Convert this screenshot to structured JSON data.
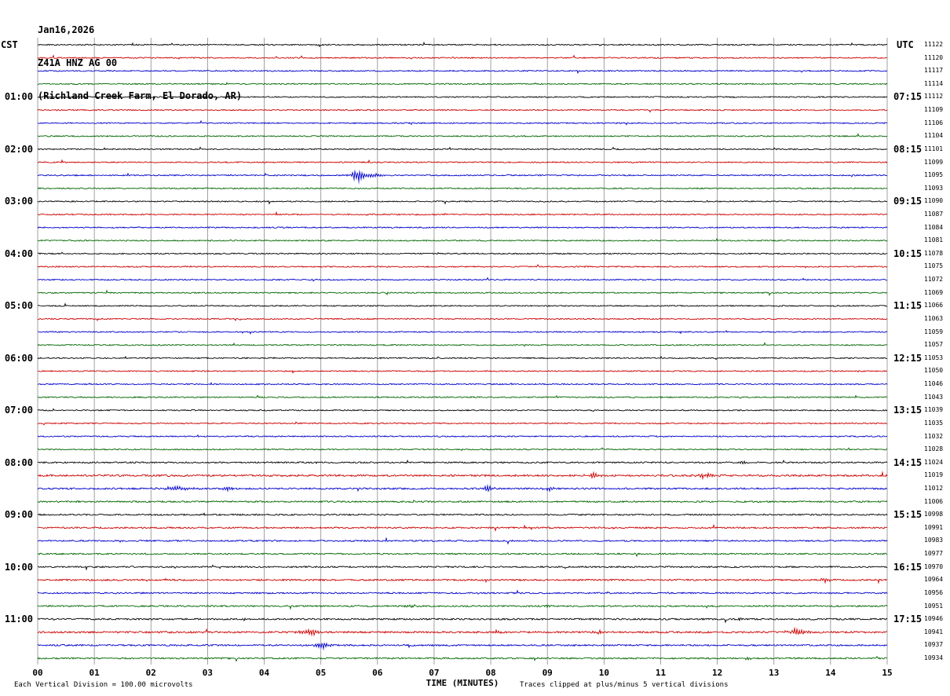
{
  "title": {
    "date": "Jan16,2026",
    "station": "Z41A HNZ AG 00",
    "location": "(Richland Creek Farm, El Dorado, AR)"
  },
  "axes": {
    "left_header": "CST",
    "right_header": "UTC",
    "xlabel": "TIME (MINUTES)",
    "x_ticks": [
      "00",
      "01",
      "02",
      "03",
      "04",
      "05",
      "06",
      "07",
      "08",
      "09",
      "10",
      "11",
      "12",
      "13",
      "14",
      "15"
    ]
  },
  "footer": {
    "left": "Each Vertical Division =  100.00 microvolts",
    "right": "Traces clipped at plus/minus 5 vertical divisions"
  },
  "chart_data": {
    "type": "line",
    "kind": "helicorder-seismogram",
    "minutes_per_row": 15,
    "xlim": [
      0,
      15
    ],
    "grid_color": "#8a8a8a",
    "colors_cycle": [
      "#000000",
      "#cc0000",
      "#0000cc",
      "#006600"
    ],
    "clip_note_divisions": 5,
    "microvolts_per_division": "100.00",
    "rows": [
      {
        "color": "#000000",
        "cst": "",
        "utc": "",
        "seq": "11122"
      },
      {
        "color": "#cc0000",
        "cst": "",
        "utc": "",
        "seq": "11120"
      },
      {
        "color": "#0000cc",
        "cst": "",
        "utc": "",
        "seq": "11117"
      },
      {
        "color": "#006600",
        "cst": "",
        "utc": "",
        "seq": "11114"
      },
      {
        "color": "#000000",
        "cst": "01:00",
        "utc": "07:15",
        "seq": "11112"
      },
      {
        "color": "#cc0000",
        "cst": "",
        "utc": "",
        "seq": "11109"
      },
      {
        "color": "#0000cc",
        "cst": "",
        "utc": "",
        "seq": "11106"
      },
      {
        "color": "#006600",
        "cst": "",
        "utc": "",
        "seq": "11104"
      },
      {
        "color": "#000000",
        "cst": "02:00",
        "utc": "08:15",
        "seq": "11101"
      },
      {
        "color": "#cc0000",
        "cst": "",
        "utc": "",
        "seq": "11099"
      },
      {
        "color": "#0000cc",
        "cst": "",
        "utc": "",
        "seq": "11095"
      },
      {
        "color": "#006600",
        "cst": "",
        "utc": "",
        "seq": "11093"
      },
      {
        "color": "#000000",
        "cst": "03:00",
        "utc": "09:15",
        "seq": "11090"
      },
      {
        "color": "#cc0000",
        "cst": "",
        "utc": "",
        "seq": "11087"
      },
      {
        "color": "#0000cc",
        "cst": "",
        "utc": "",
        "seq": "11084"
      },
      {
        "color": "#006600",
        "cst": "",
        "utc": "",
        "seq": "11081"
      },
      {
        "color": "#000000",
        "cst": "04:00",
        "utc": "10:15",
        "seq": "11078"
      },
      {
        "color": "#cc0000",
        "cst": "",
        "utc": "",
        "seq": "11075"
      },
      {
        "color": "#0000cc",
        "cst": "",
        "utc": "",
        "seq": "11072"
      },
      {
        "color": "#006600",
        "cst": "",
        "utc": "",
        "seq": "11069"
      },
      {
        "color": "#000000",
        "cst": "05:00",
        "utc": "11:15",
        "seq": "11066"
      },
      {
        "color": "#cc0000",
        "cst": "",
        "utc": "",
        "seq": "11063"
      },
      {
        "color": "#0000cc",
        "cst": "",
        "utc": "",
        "seq": "11059"
      },
      {
        "color": "#006600",
        "cst": "",
        "utc": "",
        "seq": "11057"
      },
      {
        "color": "#000000",
        "cst": "06:00",
        "utc": "12:15",
        "seq": "11053"
      },
      {
        "color": "#cc0000",
        "cst": "",
        "utc": "",
        "seq": "11050"
      },
      {
        "color": "#0000cc",
        "cst": "",
        "utc": "",
        "seq": "11046"
      },
      {
        "color": "#006600",
        "cst": "",
        "utc": "",
        "seq": "11043"
      },
      {
        "color": "#000000",
        "cst": "07:00",
        "utc": "13:15",
        "seq": "11039"
      },
      {
        "color": "#cc0000",
        "cst": "",
        "utc": "",
        "seq": "11035"
      },
      {
        "color": "#0000cc",
        "cst": "",
        "utc": "",
        "seq": "11032"
      },
      {
        "color": "#006600",
        "cst": "",
        "utc": "",
        "seq": "11028"
      },
      {
        "color": "#000000",
        "cst": "08:00",
        "utc": "14:15",
        "seq": "11024"
      },
      {
        "color": "#cc0000",
        "cst": "",
        "utc": "",
        "seq": "11019"
      },
      {
        "color": "#0000cc",
        "cst": "",
        "utc": "",
        "seq": "11012"
      },
      {
        "color": "#006600",
        "cst": "",
        "utc": "",
        "seq": "11006"
      },
      {
        "color": "#000000",
        "cst": "09:00",
        "utc": "15:15",
        "seq": "10998"
      },
      {
        "color": "#cc0000",
        "cst": "",
        "utc": "",
        "seq": "10991"
      },
      {
        "color": "#0000cc",
        "cst": "",
        "utc": "",
        "seq": "10983"
      },
      {
        "color": "#006600",
        "cst": "",
        "utc": "",
        "seq": "10977"
      },
      {
        "color": "#000000",
        "cst": "10:00",
        "utc": "16:15",
        "seq": "10970"
      },
      {
        "color": "#cc0000",
        "cst": "",
        "utc": "",
        "seq": "10964"
      },
      {
        "color": "#0000cc",
        "cst": "",
        "utc": "",
        "seq": "10956"
      },
      {
        "color": "#006600",
        "cst": "",
        "utc": "",
        "seq": "10951"
      },
      {
        "color": "#000000",
        "cst": "11:00",
        "utc": "17:15",
        "seq": "10946"
      },
      {
        "color": "#cc0000",
        "cst": "",
        "utc": "",
        "seq": "10941"
      },
      {
        "color": "#0000cc",
        "cst": "",
        "utc": "",
        "seq": "10937"
      },
      {
        "color": "#006600",
        "cst": "",
        "utc": "",
        "seq": "10934"
      }
    ],
    "noise_profile": {
      "default": 0.75,
      "rows": {
        "32": 0.9,
        "33": 1.15,
        "34": 1.0,
        "35": 0.95,
        "36": 0.9,
        "37": 0.95,
        "38": 0.9,
        "39": 0.9,
        "40": 0.95,
        "41": 1.0,
        "42": 0.9,
        "43": 0.95,
        "44": 1.0,
        "45": 1.15,
        "46": 0.95,
        "47": 0.95
      }
    },
    "events": [
      {
        "row": 10,
        "minute": 5.65,
        "amp": 8.5,
        "width": 0.1
      },
      {
        "row": 10,
        "minute": 5.95,
        "amp": 3.0,
        "width": 0.18
      },
      {
        "row": 32,
        "minute": 12.45,
        "amp": 3.5,
        "width": 0.04
      },
      {
        "row": 33,
        "minute": 9.8,
        "amp": 4.5,
        "width": 0.13
      },
      {
        "row": 33,
        "minute": 11.8,
        "amp": 3.5,
        "width": 0.13
      },
      {
        "row": 34,
        "minute": 2.5,
        "amp": 3.0,
        "width": 0.3
      },
      {
        "row": 34,
        "minute": 3.35,
        "amp": 2.5,
        "width": 0.12
      },
      {
        "row": 34,
        "minute": 7.95,
        "amp": 4.5,
        "width": 0.09
      },
      {
        "row": 34,
        "minute": 9.05,
        "amp": 3.5,
        "width": 0.09
      },
      {
        "row": 41,
        "minute": 13.9,
        "amp": 3.5,
        "width": 0.12
      },
      {
        "row": 43,
        "minute": 6.6,
        "amp": 2.2,
        "width": 0.1
      },
      {
        "row": 43,
        "minute": 9.0,
        "amp": 2.8,
        "width": 0.07
      },
      {
        "row": 44,
        "minute": 3.7,
        "amp": 1.8,
        "width": 0.1
      },
      {
        "row": 44,
        "minute": 12.4,
        "amp": 3.2,
        "width": 0.05
      },
      {
        "row": 45,
        "minute": 4.8,
        "amp": 4.5,
        "width": 0.18
      },
      {
        "row": 45,
        "minute": 8.1,
        "amp": 2.8,
        "width": 0.1
      },
      {
        "row": 45,
        "minute": 9.9,
        "amp": 2.2,
        "width": 0.08
      },
      {
        "row": 45,
        "minute": 13.4,
        "amp": 4.5,
        "width": 0.18
      },
      {
        "row": 46,
        "minute": 5.05,
        "amp": 4.5,
        "width": 0.14
      },
      {
        "row": 47,
        "minute": 12.5,
        "amp": 2.2,
        "width": 0.1
      }
    ]
  }
}
